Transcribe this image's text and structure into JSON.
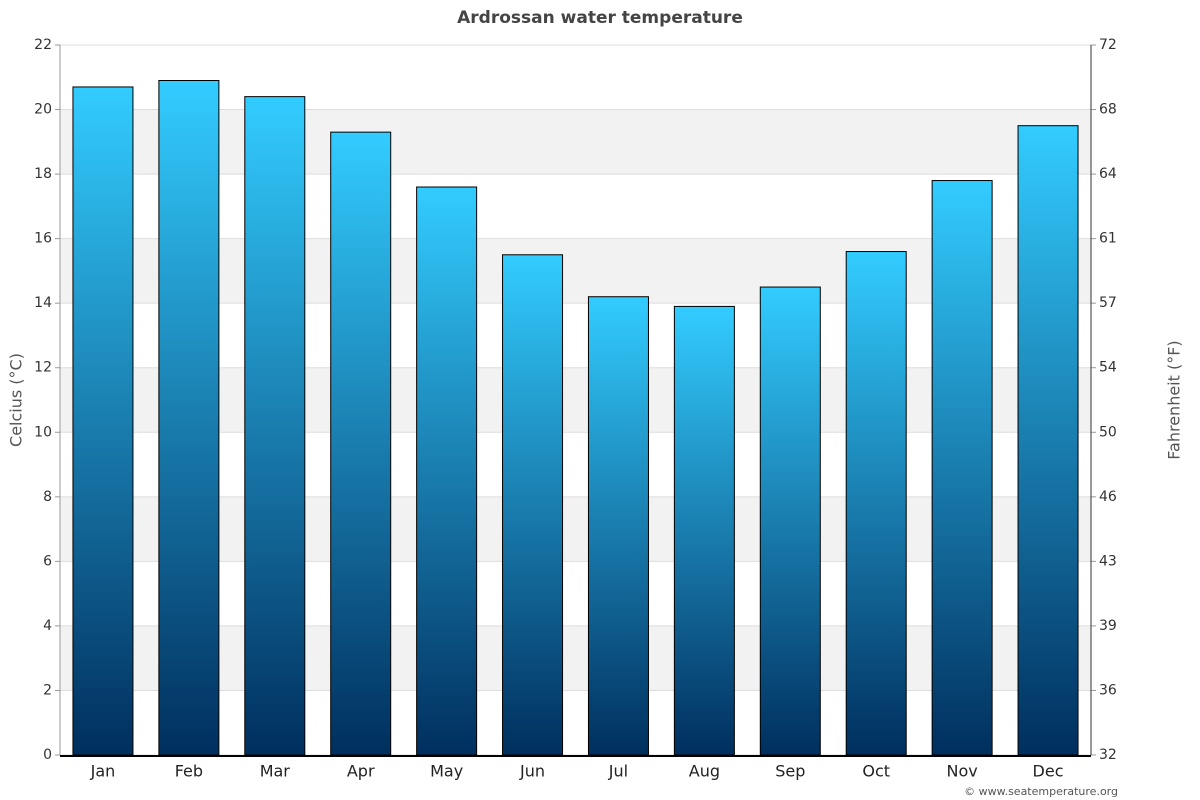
{
  "chart_data": {
    "type": "bar",
    "title": "Ardrossan water temperature",
    "y_label": "Celcius (°C)",
    "y2_label": "Fahrenheit (°F)",
    "categories": [
      "Jan",
      "Feb",
      "Mar",
      "Apr",
      "May",
      "Jun",
      "Jul",
      "Aug",
      "Sep",
      "Oct",
      "Nov",
      "Dec"
    ],
    "values": [
      20.7,
      20.9,
      20.4,
      19.3,
      17.6,
      15.5,
      14.2,
      13.9,
      14.5,
      15.6,
      17.8,
      19.5
    ],
    "color_top": "#33ccff",
    "color_bottom": "#002f5e",
    "ylim": [
      0,
      22
    ],
    "yticks": [
      0,
      2,
      4,
      6,
      8,
      10,
      12,
      14,
      16,
      18,
      20,
      22
    ],
    "y2lim": [
      32,
      71.6
    ],
    "y2ticks": [
      32,
      {
        "value": 35.6,
        "label": "36"
      },
      {
        "value": 39.2,
        "label": "39"
      },
      {
        "value": 42.8,
        "label": "43"
      },
      {
        "value": 46.4,
        "label": "46"
      },
      50,
      {
        "value": 53.6,
        "label": "54"
      },
      {
        "value": 57.2,
        "label": "57"
      },
      {
        "value": 60.8,
        "label": "61"
      },
      {
        "value": 64.4,
        "label": "64"
      },
      68,
      {
        "value": 71.6,
        "label": "72"
      }
    ],
    "grid": true,
    "credit": "© www.seatemperature.org"
  }
}
